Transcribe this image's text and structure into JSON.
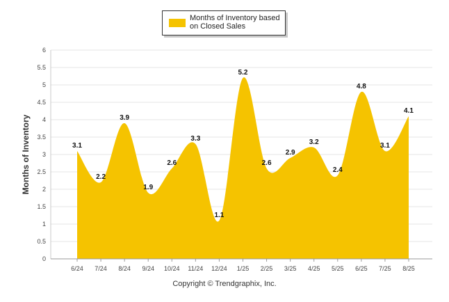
{
  "chart_data": {
    "type": "area",
    "title": "",
    "xlabel": "",
    "ylabel": "Months of Inventory",
    "categories": [
      "6/24",
      "7/24",
      "8/24",
      "9/24",
      "10/24",
      "11/24",
      "12/24",
      "1/25",
      "2/25",
      "3/25",
      "4/25",
      "5/25",
      "6/25",
      "7/25",
      "8/25"
    ],
    "series": [
      {
        "name": "Months of Inventory based on Closed Sales",
        "values": [
          3.1,
          2.2,
          3.9,
          1.9,
          2.6,
          3.3,
          1.1,
          5.2,
          2.6,
          2.9,
          3.2,
          2.4,
          4.8,
          3.1,
          4.1
        ]
      }
    ],
    "ylim": [
      0,
      6
    ],
    "yticks": [
      "0",
      "0.5",
      "1",
      "1.5",
      "2",
      "2.5",
      "3",
      "3.5",
      "4",
      "4.5",
      "5",
      "5.5",
      "6"
    ],
    "grid": true,
    "legend_position": "top-center",
    "series_color": "#F5C300"
  },
  "footer": {
    "copyright": "Copyright © Trendgraphix, Inc."
  }
}
